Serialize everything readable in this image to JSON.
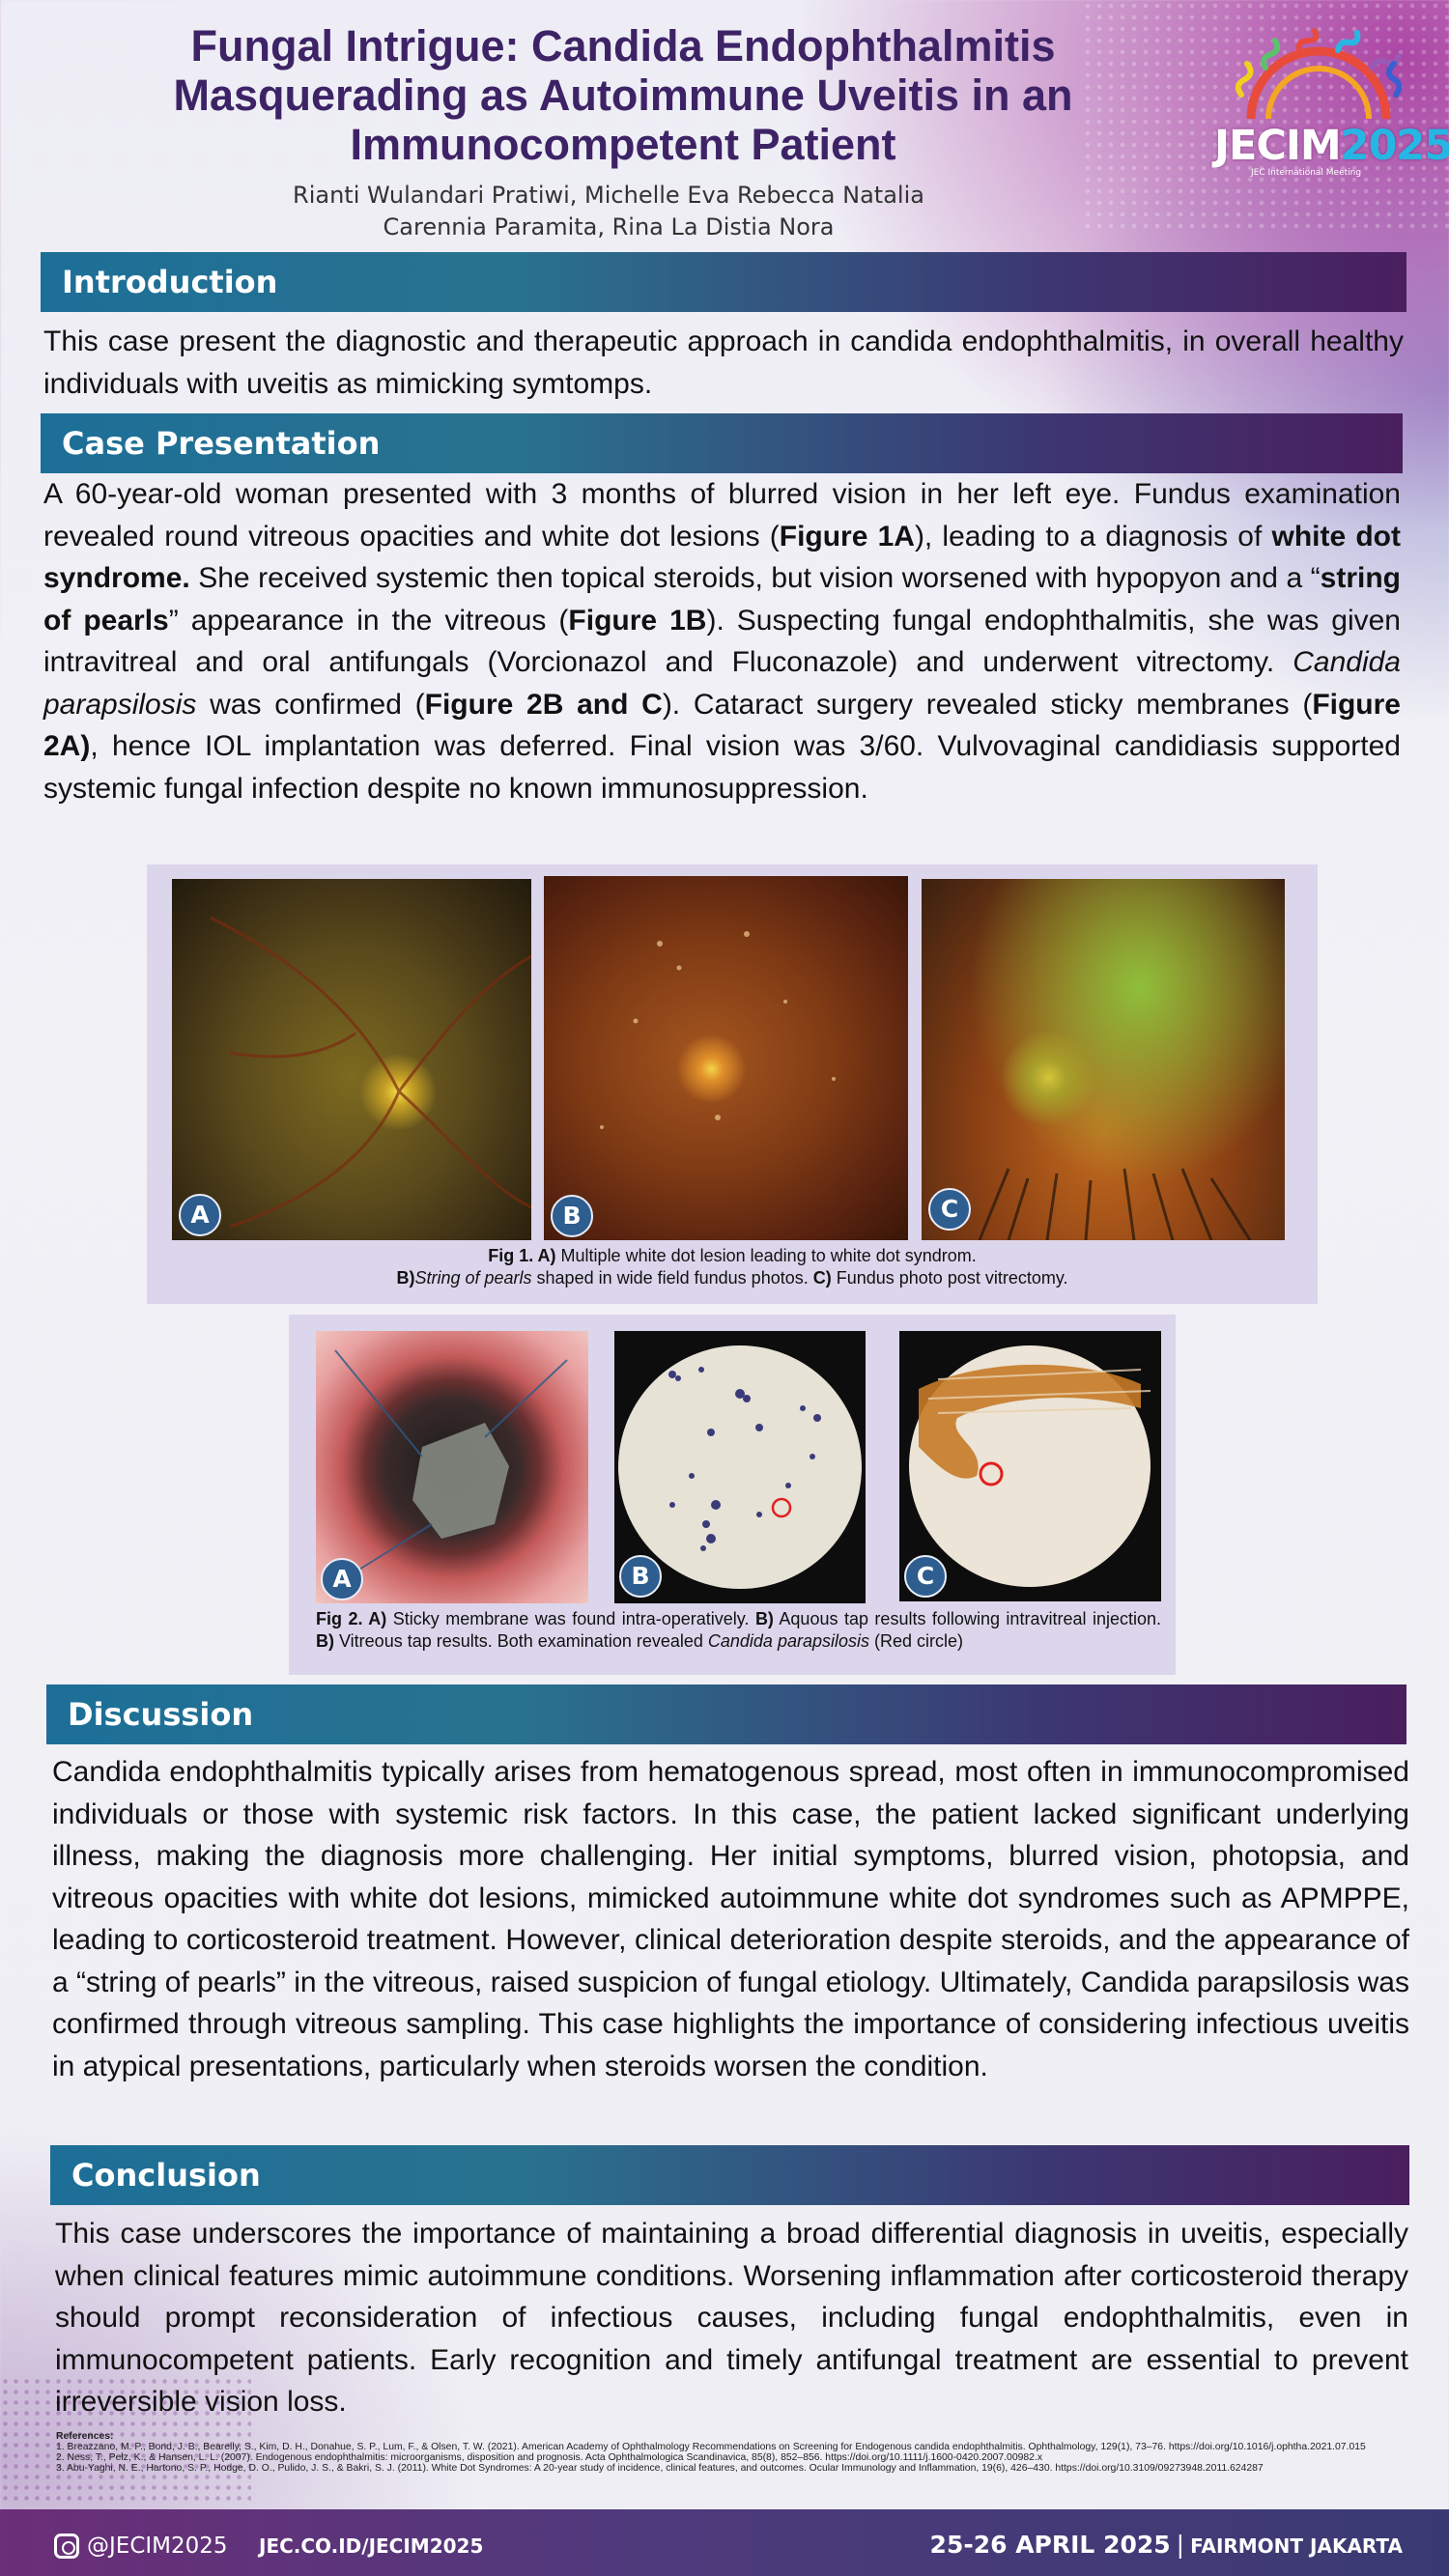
{
  "poster": {
    "title": "Fungal Intrigue: Candida Endophthalmitis Masquerading as Autoimmune Uveitis in an Immunocompetent Patient",
    "authors_line1": "Rianti Wulandari Pratiwi, Michelle Eva Rebecca Natalia",
    "authors_line2": "Carennia Paramita, Rina La Distia Nora"
  },
  "logo": {
    "name": "JECIM",
    "year": "2025",
    "subtitle": "JEC International Meeting",
    "colors": [
      "#e84b3c",
      "#f5a623",
      "#f1d11e",
      "#5cc16b",
      "#28b6e3",
      "#3a5fd1",
      "#9b59b6"
    ]
  },
  "introduction": {
    "heading": "Introduction",
    "text": "This case present the diagnostic and therapeutic approach in candida endophthalmitis, in overall healthy individuals with uveitis as mimicking symtomps."
  },
  "case": {
    "heading": "Case Presentation",
    "t1": "A 60-year-old woman presented with 3 months of blurred vision in her left eye. Fundus examination revealed round vitreous opacities and white dot lesions (",
    "b1": "Figure 1A",
    "t2": "), leading to a diagnosis of ",
    "b2": "white dot syndrome.",
    "t3": " She received systemic then topical steroids, but vision worsened with hypopyon and a “",
    "b3": "string of pearls",
    "t4": "” appearance in the vitreous (",
    "b4": "Figure 1B",
    "t5": "). Suspecting fungal endophthalmitis, she was given intravitreal and oral antifungals (Vorcionazol and Fluconazole) and underwent vitrectomy. ",
    "i1": "Candida parapsilosis",
    "t6": " was confirmed (",
    "b5": "Figure 2B and C",
    "t7": "). Cataract surgery revealed sticky membranes (",
    "b6": "Figure 2A)",
    "t8": ", hence IOL implantation was deferred. Final vision was 3/60. Vulvovaginal candidiasis supported systemic fungal infection despite no known immunosuppression."
  },
  "fig1": {
    "badges": [
      "A",
      "B",
      "C"
    ],
    "cap_label": "Fig 1. A)",
    "cap_t1": " Multiple white dot lesion leading to white dot syndrom.",
    "cap_b1": "B)",
    "cap_i1": "String of pearls",
    "cap_t2": " shaped in wide field fundus photos. ",
    "cap_b2": "C)",
    "cap_t3": " Fundus photo post vitrectomy."
  },
  "fig2": {
    "badges": [
      "A",
      "B",
      "C"
    ],
    "cap_label": "Fig 2. A)",
    "cap_t1": " Sticky membrane was found  intra-operatively. ",
    "cap_b1": "B)",
    "cap_t2": " Aquous tap results following intravitreal injection. ",
    "cap_b2": "B)",
    "cap_t3": " Vitreous tap results. Both examination revealed ",
    "cap_i1": "Candida parapsilosis",
    "cap_t4": " (Red circle)"
  },
  "discussion": {
    "heading": "Discussion",
    "text": "Candida endophthalmitis typically arises from hematogenous spread, most often in immunocompromised individuals or those with systemic risk factors. In this case, the patient lacked significant underlying illness, making the diagnosis more challenging. Her initial symptoms, blurred vision, photopsia, and vitreous opacities with white dot lesions, mimicked autoimmune white dot syndromes such as APMPPE, leading to corticosteroid treatment. However, clinical deterioration despite steroids, and the appearance of a “string of pearls” in the vitreous, raised suspicion of fungal etiology. Ultimately, Candida parapsilosis was confirmed through vitreous sampling. This case highlights the importance of considering infectious uveitis in atypical presentations, particularly when steroids worsen the condition."
  },
  "conclusion": {
    "heading": "Conclusion",
    "text": "This case underscores the importance of maintaining a broad differential diagnosis in uveitis, especially when clinical features mimic autoimmune conditions. Worsening inflammation after corticosteroid therapy should prompt reconsideration of infectious causes, including fungal endophthalmitis, even in immunocompetent patients. Early recognition and timely antifungal treatment are essential to prevent irreversible vision loss."
  },
  "references": {
    "heading": "References:",
    "items": [
      "1. Breazzano, M. P., Bond, J. B., Bearelly, S., Kim, D. H., Donahue, S. P., Lum, F., & Olsen, T. W. (2021). American Academy of Ophthalmology Recommendations on Screening for Endogenous candida endophthalmitis. Ophthalmology, 129(1), 73–76. https://doi.org/10.1016/j.ophtha.2021.07.015",
      "2. Ness, T., Pelz, K., & Hansen, L. L. (2007). Endogenous endophthalmitis: microorganisms, disposition and prognosis. Acta Ophthalmologica Scandinavica, 85(8), 852–856. https://doi.org/10.1111/j.1600-0420.2007.00982.x",
      "3. Abu-Yaghi, N. E., Hartono, S. P., Hodge, D. O., Pulido, J. S., & Bakri, S. J. (2011). White Dot Syndromes: A 20-year study of incidence, clinical features, and outcomes. Ocular Immunology and Inflammation, 19(6), 426–430. https://doi.org/10.3109/09273948.2011.624287"
    ]
  },
  "footer": {
    "icon": "instagram-icon",
    "handle": "@JECIM2025",
    "website": "JEC.CO.ID/JECIM2025",
    "dates": "25-26 APRIL 2025",
    "separator": "|",
    "venue": "FAIRMONT JAKARTA"
  }
}
